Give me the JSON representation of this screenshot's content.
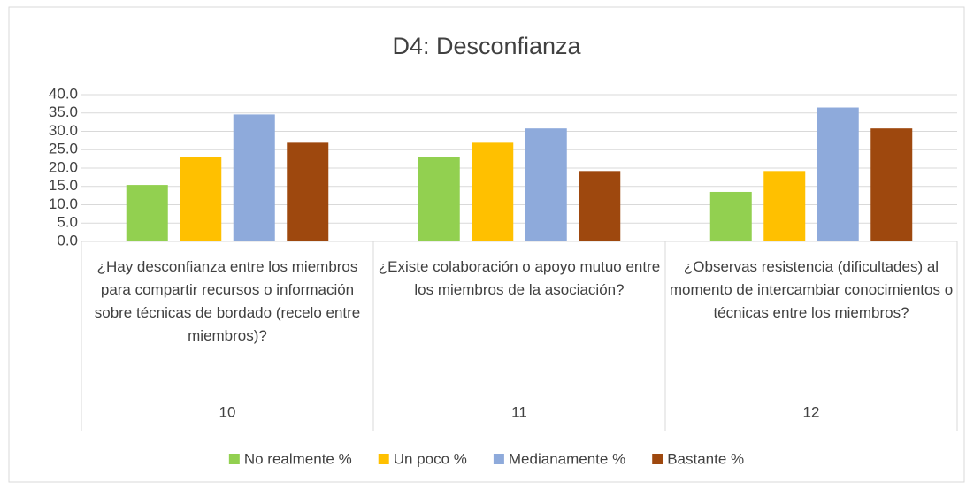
{
  "chart_data": {
    "type": "bar",
    "title": "D4: Desconfianza",
    "categories": [
      "¿Hay desconfianza entre los miembros para compartir recursos o información sobre técnicas de bordado (recelo entre miembros)?",
      "¿Existe colaboración o apoyo mutuo entre los miembros de la asociación?",
      "¿Observas resistencia (dificultades) al momento de intercambiar conocimientos o técnicas entre los miembros?"
    ],
    "category_ids": [
      "10",
      "11",
      "12"
    ],
    "series": [
      {
        "name": "No realmente %",
        "color": "#92d050",
        "values": [
          15.4,
          23.1,
          13.5
        ]
      },
      {
        "name": "Un poco %",
        "color": "#ffc000",
        "values": [
          23.1,
          26.9,
          19.2
        ]
      },
      {
        "name": "Medianamente %",
        "color": "#8eaadb",
        "values": [
          34.6,
          30.8,
          36.5
        ]
      },
      {
        "name": "Bastante %",
        "color": "#9e480e",
        "values": [
          26.9,
          19.2,
          30.8
        ]
      }
    ],
    "ylim": [
      0,
      40
    ],
    "yticks": [
      {
        "value": 0,
        "label": "0.0"
      },
      {
        "value": 5,
        "label": "5.0"
      },
      {
        "value": 10,
        "label": "10.0"
      },
      {
        "value": 15,
        "label": "15.0"
      },
      {
        "value": 20,
        "label": "20.0"
      },
      {
        "value": 25,
        "label": "25.0"
      },
      {
        "value": 30,
        "label": "30.0"
      },
      {
        "value": 35,
        "label": "35.0"
      },
      {
        "value": 40,
        "label": "40.0"
      }
    ],
    "grid": true,
    "legend": "bottom"
  }
}
